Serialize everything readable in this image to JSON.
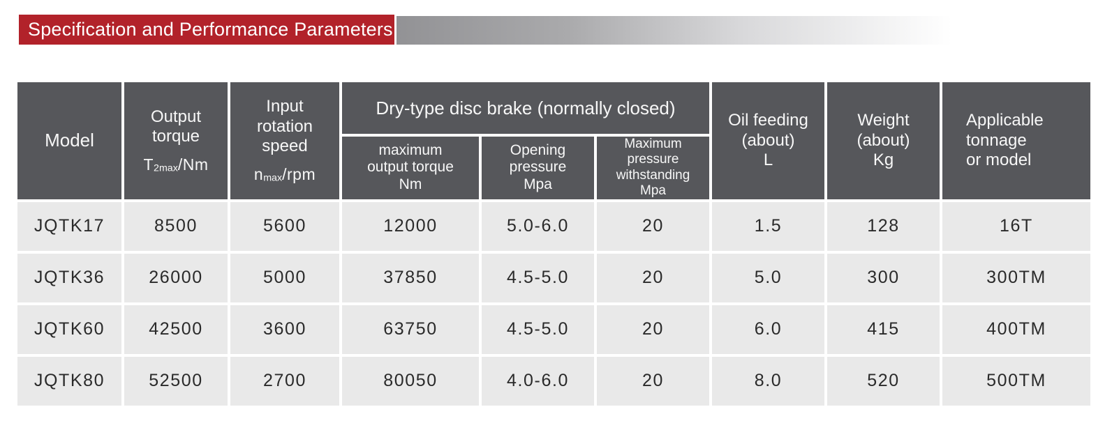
{
  "banner": {
    "title": "Specification and Performance Parameters"
  },
  "colors": {
    "banner_red": "#b2222a",
    "header_gray": "#56575b",
    "row_gray": "#e9e9e9",
    "gradient_start": "#929295"
  },
  "table": {
    "header": {
      "model": "Model",
      "output_torque_label": "Output\ntorque",
      "output_torque_sym": {
        "base": "T",
        "sub": "2max",
        "unit": "/Nm"
      },
      "input_speed_label": "Input\nrotation\nspeed",
      "input_speed_sym": {
        "base": "n",
        "sub": "max",
        "unit": "/rpm"
      },
      "brake_group": "Dry-type disc brake (normally closed)",
      "brake_max_output_torque": "maximum\noutput torque\nNm",
      "opening_pressure": "Opening\npressure\nMpa",
      "max_pressure_withstanding": "Maximum pressure\nwithstanding\nMpa",
      "oil_feeding": "Oil feeding\n(about)\nL",
      "weight": "Weight\n(about)\nKg",
      "applicable": "Applicable\ntonnage\nor model"
    },
    "rows": [
      {
        "model": "JQTK17",
        "output_torque": "8500",
        "input_speed": "5600",
        "brake_torque": "12000",
        "opening_pressure": "5.0-6.0",
        "max_pressure": "20",
        "oil_feeding": "1.5",
        "weight": "128",
        "tonnage": "16T"
      },
      {
        "model": "JQTK36",
        "output_torque": "26000",
        "input_speed": "5000",
        "brake_torque": "37850",
        "opening_pressure": "4.5-5.0",
        "max_pressure": "20",
        "oil_feeding": "5.0",
        "weight": "300",
        "tonnage": "300TM"
      },
      {
        "model": "JQTK60",
        "output_torque": "42500",
        "input_speed": "3600",
        "brake_torque": "63750",
        "opening_pressure": "4.5-5.0",
        "max_pressure": "20",
        "oil_feeding": "6.0",
        "weight": "415",
        "tonnage": "400TM"
      },
      {
        "model": "JQTK80",
        "output_torque": "52500",
        "input_speed": "2700",
        "brake_torque": "80050",
        "opening_pressure": "4.0-6.0",
        "max_pressure": "20",
        "oil_feeding": "8.0",
        "weight": "520",
        "tonnage": "500TM"
      }
    ]
  }
}
